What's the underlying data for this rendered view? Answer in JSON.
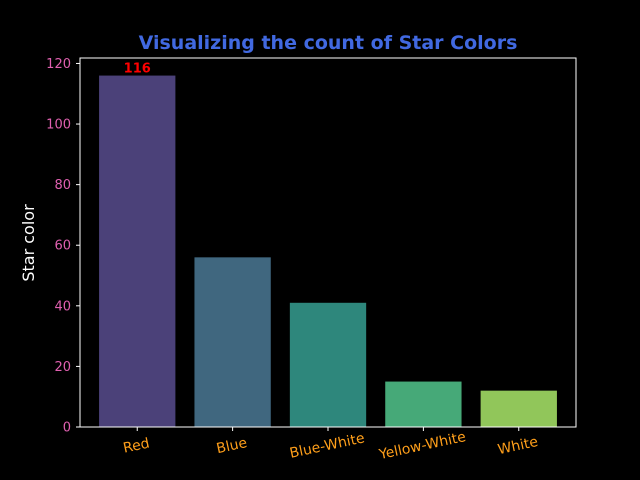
{
  "chart_data": {
    "type": "bar",
    "title": "Visualizing the count of Star Colors",
    "xlabel": "",
    "ylabel": "Star color",
    "categories": [
      "Red",
      "Blue",
      "Blue-White",
      "Yellow-White",
      "White"
    ],
    "values": [
      116,
      56,
      41,
      15,
      12
    ],
    "bar_colors": [
      "#4b4179",
      "#40677f",
      "#2e877c",
      "#46a978",
      "#91c65a"
    ],
    "ylim": [
      0,
      121.8
    ],
    "yticks": [
      0,
      20,
      40,
      60,
      80,
      100,
      120
    ],
    "data_labels": [
      {
        "category": "Red",
        "text": "116"
      }
    ],
    "grid": false,
    "legend": "none"
  },
  "colors": {
    "background": "#000000",
    "title": "#4169e1",
    "ylabel": "#ffffff",
    "ytick_labels": "#e060b0",
    "xtick_labels": "#ff9f1a",
    "axes_spines": "#ffffff",
    "data_label": "#ff0000"
  }
}
